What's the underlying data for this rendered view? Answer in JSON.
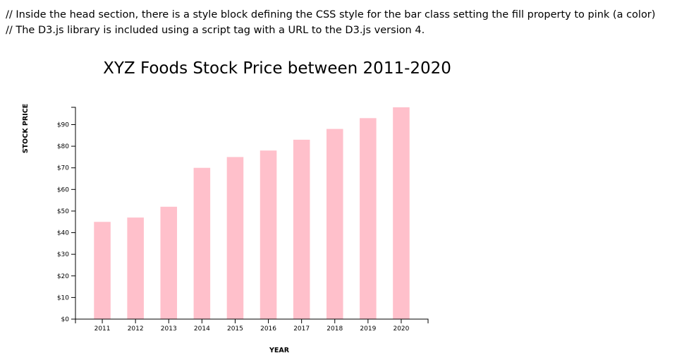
{
  "comments": [
    "// Inside the head section, there is a style block defining the CSS style for the bar class setting the fill property to pink (a color)",
    "// The D3.js library is included using a script tag with a URL to the D3.js version 4."
  ],
  "bar_color": "#ffc0cb",
  "chart_data": {
    "type": "bar",
    "title": "XYZ Foods Stock Price between 2011-2020",
    "xlabel": "YEAR",
    "ylabel": "STOCK PRICE",
    "categories": [
      "2011",
      "2012",
      "2013",
      "2014",
      "2015",
      "2016",
      "2017",
      "2018",
      "2019",
      "2020"
    ],
    "values": [
      45,
      47,
      52,
      70,
      75,
      78,
      83,
      88,
      93,
      98
    ],
    "ylim": [
      0,
      98
    ],
    "yticks": [
      0,
      10,
      20,
      30,
      40,
      50,
      60,
      70,
      80,
      90
    ],
    "ytick_labels": [
      "$0",
      "$10",
      "$20",
      "$30",
      "$40",
      "$50",
      "$60",
      "$70",
      "$80",
      "$90"
    ],
    "grid": false,
    "legend": "none"
  }
}
